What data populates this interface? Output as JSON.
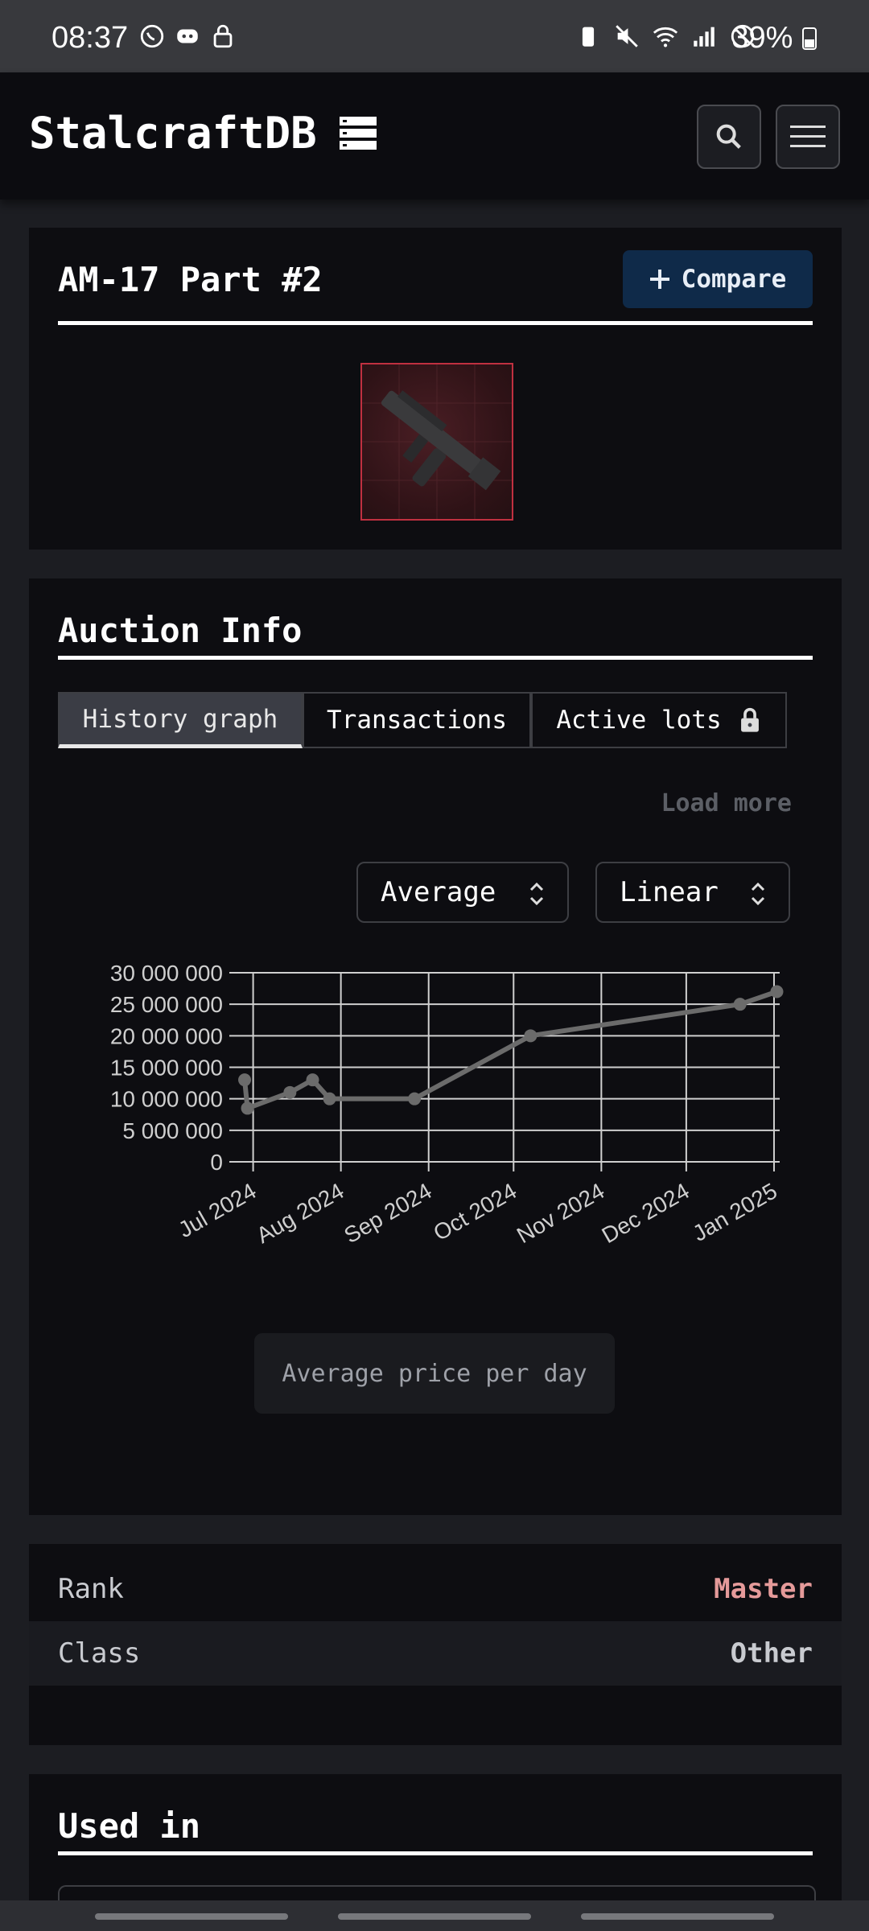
{
  "status_bar": {
    "time": "08:37",
    "battery": "39%"
  },
  "app": {
    "title": "StalcraftDB"
  },
  "item": {
    "name": "AM-17 Part #2",
    "compare_label": "Compare"
  },
  "auction": {
    "title": "Auction Info",
    "tabs": [
      "History graph",
      "Transactions",
      "Active lots"
    ],
    "load_more": "Load more",
    "aggregation": "Average",
    "scale": "Linear",
    "caption": "Average price per day"
  },
  "chart_data": {
    "type": "line",
    "x": [
      "2024-06-28",
      "2024-06-29",
      "2024-07-14",
      "2024-07-22",
      "2024-07-28",
      "2024-08-27",
      "2024-10-07",
      "2024-12-20",
      "2025-01-02"
    ],
    "values": [
      13000000,
      8500000,
      11000000,
      13000000,
      10000000,
      10000000,
      20000000,
      25000000,
      27000000
    ],
    "xticks": [
      "Jul 2024",
      "Aug 2024",
      "Sep 2024",
      "Oct 2024",
      "Nov 2024",
      "Dec 2024",
      "Jan 2025"
    ],
    "yticks": [
      "0",
      "5 000 000",
      "10 000 000",
      "15 000 000",
      "20 000 000",
      "25 000 000",
      "30 000 000"
    ],
    "ylim": [
      0,
      30000000
    ],
    "grid": true,
    "color": "#6b6b6b"
  },
  "details": {
    "rows": [
      {
        "key": "Rank",
        "value": "Master",
        "color": "#e59a9a"
      },
      {
        "key": "Class",
        "value": "Other",
        "color": "#c9cbd0"
      }
    ]
  },
  "used_in": {
    "title": "Used in"
  }
}
